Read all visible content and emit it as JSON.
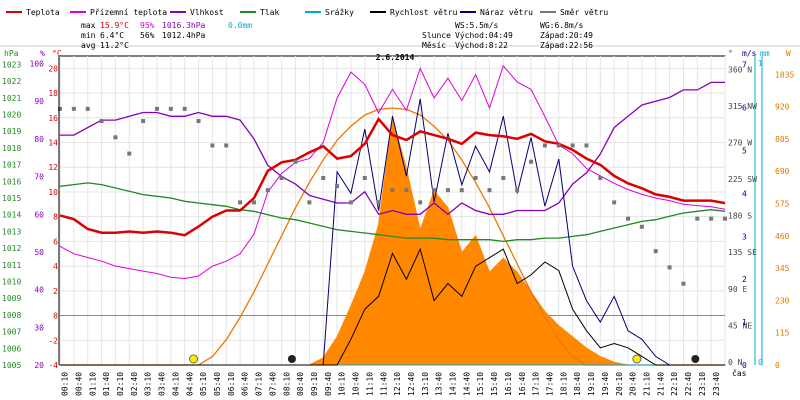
{
  "chart_data": {
    "type": "line",
    "title": "2.6.2014",
    "legend": [
      {
        "label": "Teplota",
        "color": "#dd0000"
      },
      {
        "label": "Přízemní teplota",
        "color": "#dd00dd"
      },
      {
        "label": "Vlhkost",
        "color": "#8800bb"
      },
      {
        "label": "Tlak",
        "color": "#228822"
      },
      {
        "label": "Srážky",
        "color": "#00aadd"
      },
      {
        "label": "Rychlost větru",
        "color": "#000000"
      },
      {
        "label": "Náraz větru",
        "color": "#000077"
      },
      {
        "label": "Směr větru",
        "color": "#777777"
      }
    ],
    "stats": {
      "max_label": "max",
      "max_temp": "15.9°C",
      "max_hum": "95%",
      "max_press": "1016.3hPa",
      "max_rain": "0.0mm",
      "min_label": "min",
      "min_temp": "6.4°C",
      "min_hum": "56%",
      "min_press": "1012.4hPa",
      "avg_label": "avg",
      "avg_temp": "11.2°C"
    },
    "info": {
      "ws": "WS:5.5m/s",
      "wg": "WG:6.8m/s",
      "slunce": "Slunce",
      "slunce_vychod": "Východ:04:49",
      "slunce_zapad": "Západ:20:49",
      "mesic": "Měsíc",
      "mesic_vychod": "Východ:8:22",
      "mesic_zapad": "Západ:22:56"
    },
    "axes": {
      "hpa_label": "hPa",
      "pct_label": "%",
      "degc_label": "°C",
      "deg_label": "°",
      "ms_label": "m/s",
      "mm_label": "mm",
      "w_label": "W",
      "cas_label": "čas",
      "hpa_ticks": [
        "1023",
        "1022",
        "1021",
        "1020",
        "1019",
        "1018",
        "1017",
        "1016",
        "1015",
        "1014",
        "1013",
        "1012",
        "1011",
        "1010",
        "1009",
        "1008",
        "1007",
        "1006",
        "1005"
      ],
      "pct_ticks": [
        "100",
        "90",
        "80",
        "70",
        "60",
        "50",
        "40",
        "30",
        "20"
      ],
      "degc_ticks": [
        "20",
        "18",
        "16",
        "14",
        "12",
        "10",
        "8",
        "6",
        "4",
        "2",
        "0",
        "-2",
        "-4"
      ],
      "dir_ticks": [
        "360 N",
        "315 NW",
        "270 W",
        "225 SW",
        "180 S",
        "135 SE",
        "90 E",
        "45 NE",
        "0 N"
      ],
      "ms_ticks": [
        "7",
        "6",
        "5",
        "4",
        "3",
        "2",
        "1",
        "0"
      ],
      "mm_ticks": [
        "1",
        "0"
      ],
      "w_ticks": [
        "1035",
        "920",
        "805",
        "690",
        "575",
        "460",
        "345",
        "230",
        "115",
        "0"
      ],
      "time_ticks": [
        "00:10",
        "00:40",
        "01:10",
        "01:40",
        "02:10",
        "02:40",
        "03:10",
        "03:40",
        "04:10",
        "04:40",
        "05:10",
        "05:40",
        "06:10",
        "06:40",
        "07:10",
        "07:40",
        "08:10",
        "08:40",
        "09:10",
        "09:40",
        "10:10",
        "10:40",
        "11:10",
        "11:40",
        "12:10",
        "12:40",
        "13:10",
        "13:40",
        "14:10",
        "14:40",
        "15:10",
        "15:40",
        "16:10",
        "16:40",
        "17:10",
        "17:40",
        "18:10",
        "18:40",
        "19:10",
        "19:40",
        "20:10",
        "20:40",
        "21:10",
        "21:40",
        "22:10",
        "22:40",
        "23:10",
        "23:40"
      ]
    },
    "x_hours": [
      0,
      0.5,
      1,
      1.5,
      2,
      2.5,
      3,
      3.5,
      4,
      4.5,
      5,
      5.5,
      6,
      6.5,
      7,
      7.5,
      8,
      8.5,
      9,
      9.5,
      10,
      10.5,
      11,
      11.5,
      12,
      12.5,
      13,
      13.5,
      14,
      14.5,
      15,
      15.5,
      16,
      16.5,
      17,
      17.5,
      18,
      18.5,
      19,
      19.5,
      20,
      20.5,
      21,
      21.5,
      22,
      22.5,
      23,
      23.5,
      24
    ],
    "temperature_c": [
      8.1,
      7.8,
      7,
      6.7,
      6.7,
      6.8,
      6.7,
      6.8,
      6.7,
      6.5,
      7.2,
      8,
      8.5,
      8.5,
      9.5,
      11.7,
      12.4,
      12.6,
      13.2,
      13.7,
      12.7,
      12.9,
      13.9,
      15.9,
      14.6,
      14.2,
      14.9,
      14.6,
      14.3,
      13.9,
      14.8,
      14.6,
      14.5,
      14.3,
      14.7,
      14.1,
      13.9,
      13.4,
      12.7,
      12.2,
      11.3,
      10.7,
      10.3,
      9.8,
      9.6,
      9.3,
      9.3,
      9.3,
      9.1
    ],
    "ground_temp_c": [
      5.6,
      5,
      4.7,
      4.4,
      4,
      3.8,
      3.6,
      3.4,
      3.1,
      3,
      3.2,
      4,
      4.4,
      5,
      6.6,
      10,
      11.5,
      12.4,
      12.7,
      14,
      17.6,
      19.7,
      18.7,
      16.4,
      18.3,
      16.6,
      20,
      17.6,
      19.2,
      17.4,
      19.5,
      16.8,
      20.2,
      18.9,
      18.3,
      16.1,
      13.8,
      13.1,
      11.9,
      11.3,
      10.7,
      10.2,
      9.8,
      9.5,
      9.3,
      9,
      8.9,
      8.8,
      8.6
    ],
    "humidity_pct": [
      81,
      81,
      83,
      85,
      85,
      86,
      87,
      87,
      86,
      86,
      87,
      86,
      86,
      85,
      80,
      73,
      70,
      68,
      65,
      64,
      63,
      63,
      66,
      60,
      61,
      60,
      60,
      63,
      60,
      63,
      61,
      60,
      60,
      61,
      61,
      61,
      63,
      68,
      71,
      76,
      83,
      86,
      89,
      90,
      91,
      93,
      93,
      95,
      95
    ],
    "pressure_hpa": [
      1015.7,
      1015.8,
      1015.9,
      1015.8,
      1015.6,
      1015.4,
      1015.2,
      1015.1,
      1015,
      1014.8,
      1014.7,
      1014.6,
      1014.5,
      1014.3,
      1014.2,
      1014,
      1013.8,
      1013.7,
      1013.5,
      1013.3,
      1013.1,
      1013,
      1012.9,
      1012.8,
      1012.7,
      1012.6,
      1012.6,
      1012.6,
      1012.5,
      1012.5,
      1012.5,
      1012.5,
      1012.4,
      1012.5,
      1012.5,
      1012.6,
      1012.6,
      1012.7,
      1012.8,
      1013,
      1013.2,
      1013.4,
      1013.6,
      1013.7,
      1013.9,
      1014.1,
      1014.2,
      1014.3,
      1014.2
    ],
    "rain_mm": [
      0,
      0,
      0,
      0,
      0,
      0,
      0,
      0,
      0,
      0,
      0,
      0,
      0,
      0,
      0,
      0,
      0,
      0,
      0,
      0,
      0,
      0,
      0,
      0,
      0,
      0,
      0,
      0,
      0,
      0,
      0,
      0,
      0,
      0,
      0,
      0,
      0,
      0,
      0,
      0,
      0,
      0,
      0,
      0,
      0,
      0,
      0,
      0,
      0
    ],
    "wind_speed_ms": [
      0,
      0,
      0,
      0,
      0,
      0,
      0,
      0,
      0,
      0,
      0,
      0,
      0,
      0,
      0,
      0,
      0,
      0,
      0,
      0,
      0,
      0.6,
      1.3,
      1.6,
      2.6,
      2,
      2.7,
      1.5,
      1.9,
      1.6,
      2.3,
      2.5,
      2.7,
      1.9,
      2.1,
      2.4,
      2.2,
      1.3,
      0.8,
      0.4,
      0.5,
      0.4,
      0.2,
      0,
      0,
      0,
      0,
      0,
      0
    ],
    "wind_gust_ms": [
      0,
      0,
      0,
      0,
      0,
      0,
      0,
      0,
      0,
      0,
      0,
      0,
      0,
      0,
      0,
      0,
      0,
      0,
      0,
      0,
      4.5,
      4,
      5.5,
      3.6,
      5.8,
      4.4,
      6.2,
      3.8,
      5.4,
      4.2,
      5.1,
      4.5,
      5.8,
      4,
      5.3,
      3.7,
      4.8,
      2.3,
      1.5,
      1,
      1.6,
      0.8,
      0.6,
      0.2,
      0,
      0,
      0,
      0,
      0
    ],
    "wind_dir_deg": [
      315,
      315,
      315,
      300,
      280,
      260,
      300,
      315,
      315,
      315,
      300,
      270,
      270,
      200,
      200,
      215,
      230,
      250,
      200,
      230,
      220,
      200,
      230,
      200,
      215,
      215,
      200,
      215,
      215,
      215,
      230,
      215,
      230,
      215,
      250,
      270,
      270,
      270,
      270,
      230,
      200,
      180,
      170,
      140,
      120,
      100,
      180,
      180,
      180
    ],
    "solar_w": [
      0,
      0,
      0,
      0,
      0,
      0,
      0,
      0,
      0,
      0,
      0,
      0,
      0,
      0,
      0,
      0,
      0,
      0,
      0,
      25,
      100,
      210,
      330,
      500,
      880,
      700,
      480,
      620,
      560,
      400,
      460,
      330,
      380,
      330,
      260,
      190,
      140,
      100,
      60,
      30,
      10,
      0,
      0,
      0,
      0,
      0,
      0,
      0,
      0
    ],
    "theoretical_solar_w": [
      0,
      0,
      0,
      0,
      0,
      0,
      0,
      0,
      0,
      0,
      0,
      30,
      90,
      170,
      260,
      360,
      460,
      560,
      650,
      730,
      800,
      850,
      890,
      910,
      915,
      910,
      890,
      850,
      800,
      730,
      650,
      560,
      460,
      360,
      260,
      170,
      90,
      30,
      0,
      0,
      0,
      0,
      0,
      0,
      0,
      0,
      0,
      0,
      0
    ],
    "ylim_temp": [
      -4,
      21
    ],
    "ylim_hpa": [
      1005,
      1023.5
    ],
    "ylim_pct": [
      20,
      102
    ],
    "ylim_dir": [
      0,
      380
    ],
    "ylim_ms": [
      0,
      7.2
    ],
    "ylim_w": [
      0,
      1100
    ],
    "markers": {
      "sunrise_hour": 4.82,
      "sunset_hour": 20.82,
      "moonrise_hour": 8.37,
      "moonset_hour": 22.93
    }
  }
}
